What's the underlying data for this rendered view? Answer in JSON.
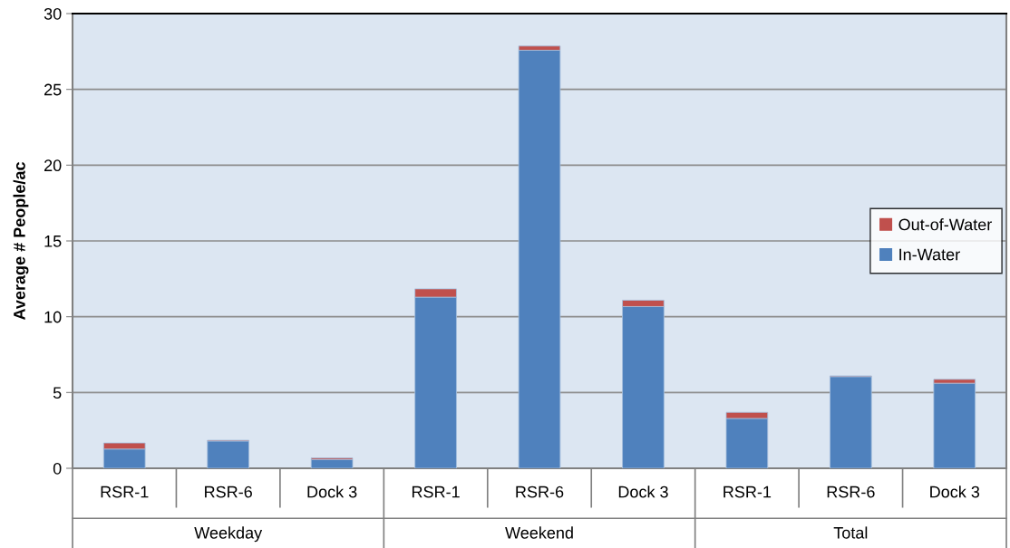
{
  "chart_data": {
    "type": "bar",
    "stacked": true,
    "ylabel": "Average # People/ac",
    "categories": [
      "RSR-1",
      "RSR-6",
      "Dock 3",
      "RSR-1",
      "RSR-6",
      "Dock 3",
      "RSR-1",
      "RSR-6",
      "Dock 3"
    ],
    "annotations": [
      "Weekday",
      "Weekend",
      "Total"
    ],
    "series": [
      {
        "name": "In-Water",
        "color": "#4f81bd",
        "values": [
          1.27,
          1.8,
          0.58,
          11.29,
          27.58,
          10.67,
          3.29,
          6.05,
          5.61
        ]
      },
      {
        "name": "Out-of-Water",
        "color": "#c0504d",
        "values": [
          0.4,
          0.05,
          0.1,
          0.55,
          0.28,
          0.42,
          0.4,
          0.05,
          0.26
        ]
      }
    ],
    "ylim": [
      0,
      30
    ],
    "yticks": [
      0,
      5,
      10,
      15,
      20,
      25,
      30
    ],
    "grid": "y",
    "legend": "right"
  }
}
